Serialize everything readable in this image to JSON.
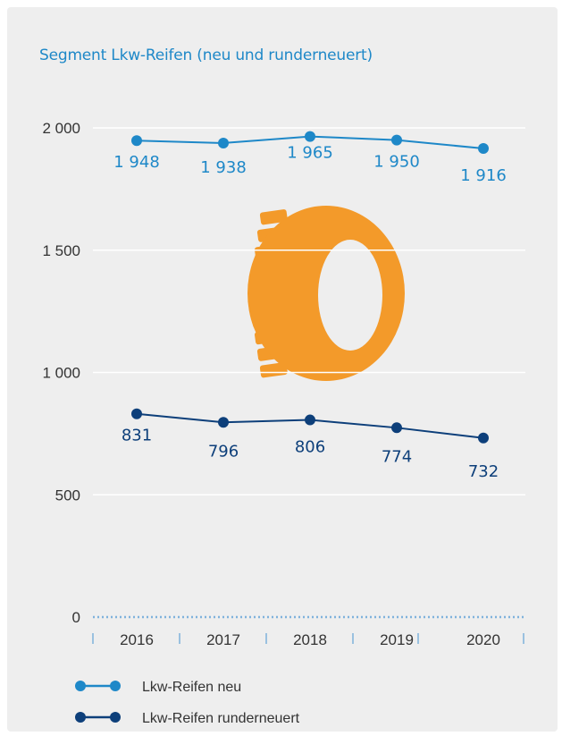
{
  "chart_data": {
    "type": "line",
    "title": "Segment Lkw-Reifen (neu  und runderneuert)",
    "xlabel": "",
    "ylabel": "",
    "categories": [
      "2016",
      "2017",
      "2018",
      "2019",
      "2020"
    ],
    "ylim": [
      0,
      2000
    ],
    "yticks": [
      {
        "value": 0,
        "label": "0"
      },
      {
        "value": 500,
        "label": "500"
      },
      {
        "value": 1000,
        "label": "1 000"
      },
      {
        "value": 1500,
        "label": "1 500"
      },
      {
        "value": 2000,
        "label": "2 000"
      }
    ],
    "grid": true,
    "legend_position": "bottom",
    "series": [
      {
        "name": "Lkw-Reifen neu",
        "color": "#1e88c8",
        "values": [
          1948,
          1938,
          1965,
          1950,
          1916
        ],
        "labels": [
          "1 948",
          "1 938",
          "1 965",
          "1 950",
          "1 916"
        ]
      },
      {
        "name": "Lkw-Reifen runderneuert",
        "color": "#0d3f7a",
        "values": [
          831,
          796,
          806,
          774,
          732
        ],
        "labels": [
          "831",
          "796",
          "806",
          "774",
          "732"
        ]
      }
    ],
    "decoration": {
      "icon": "truck-tire-icon",
      "color": "#f39a2a"
    },
    "background_color": "#eeeeee"
  }
}
